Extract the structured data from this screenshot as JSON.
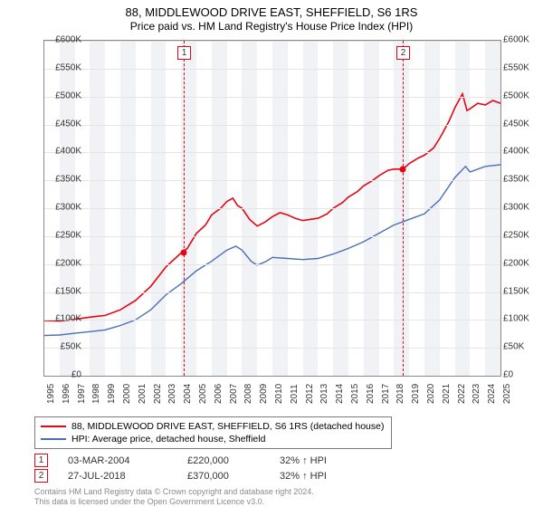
{
  "title": "88, MIDDLEWOOD DRIVE EAST, SHEFFIELD, S6 1RS",
  "subtitle": "Price paid vs. HM Land Registry's House Price Index (HPI)",
  "chart": {
    "type": "line",
    "background_color": "#ffffff",
    "band_color": "#f0f2f6",
    "grid_color": "#e5e5e5",
    "border_color": "#888888",
    "ylim": [
      0,
      600000
    ],
    "ytick_step": 50000,
    "ytick_prefix": "£",
    "y_ticks": [
      "£0",
      "£50K",
      "£100K",
      "£150K",
      "£200K",
      "£250K",
      "£300K",
      "£350K",
      "£400K",
      "£450K",
      "£500K",
      "£550K",
      "£600K"
    ],
    "x_years": [
      1995,
      1996,
      1997,
      1998,
      1999,
      2000,
      2001,
      2002,
      2003,
      2004,
      2005,
      2006,
      2007,
      2008,
      2009,
      2010,
      2011,
      2012,
      2013,
      2014,
      2015,
      2016,
      2017,
      2018,
      2019,
      2020,
      2021,
      2022,
      2023,
      2024,
      2025
    ],
    "series": [
      {
        "name": "88, MIDDLEWOOD DRIVE EAST, SHEFFIELD, S6 1RS (detached house)",
        "color": "#e30613",
        "line_width": 1.6,
        "points": [
          [
            1995,
            99000
          ],
          [
            1996,
            98000
          ],
          [
            1997,
            101000
          ],
          [
            1998,
            105000
          ],
          [
            1999,
            108000
          ],
          [
            2000,
            118000
          ],
          [
            2001,
            135000
          ],
          [
            2002,
            160000
          ],
          [
            2003,
            195000
          ],
          [
            2004,
            220000
          ],
          [
            2004.4,
            228000
          ],
          [
            2005,
            255000
          ],
          [
            2005.6,
            270000
          ],
          [
            2006,
            288000
          ],
          [
            2006.6,
            300000
          ],
          [
            2007,
            312000
          ],
          [
            2007.4,
            318000
          ],
          [
            2007.7,
            305000
          ],
          [
            2008,
            300000
          ],
          [
            2008.5,
            280000
          ],
          [
            2009,
            268000
          ],
          [
            2009.5,
            275000
          ],
          [
            2010,
            285000
          ],
          [
            2010.5,
            292000
          ],
          [
            2011,
            288000
          ],
          [
            2011.5,
            282000
          ],
          [
            2012,
            278000
          ],
          [
            2012.5,
            280000
          ],
          [
            2013,
            282000
          ],
          [
            2013.6,
            290000
          ],
          [
            2014,
            300000
          ],
          [
            2014.6,
            310000
          ],
          [
            2015,
            320000
          ],
          [
            2015.6,
            330000
          ],
          [
            2016,
            340000
          ],
          [
            2016.6,
            350000
          ],
          [
            2017,
            358000
          ],
          [
            2017.6,
            368000
          ],
          [
            2018,
            370000
          ],
          [
            2018.57,
            370000
          ],
          [
            2019,
            380000
          ],
          [
            2019.6,
            390000
          ],
          [
            2020,
            395000
          ],
          [
            2020.6,
            408000
          ],
          [
            2021,
            425000
          ],
          [
            2021.6,
            455000
          ],
          [
            2022,
            480000
          ],
          [
            2022.5,
            505000
          ],
          [
            2022.8,
            475000
          ],
          [
            2023,
            478000
          ],
          [
            2023.5,
            488000
          ],
          [
            2024,
            485000
          ],
          [
            2024.5,
            493000
          ],
          [
            2025,
            488000
          ]
        ]
      },
      {
        "name": "HPI: Average price, detached house, Sheffield",
        "color": "#4a6fb3",
        "line_width": 1.4,
        "points": [
          [
            1995,
            72000
          ],
          [
            1996,
            73000
          ],
          [
            1997,
            76000
          ],
          [
            1998,
            79000
          ],
          [
            1999,
            82000
          ],
          [
            2000,
            90000
          ],
          [
            2001,
            100000
          ],
          [
            2002,
            118000
          ],
          [
            2003,
            145000
          ],
          [
            2004,
            165000
          ],
          [
            2005,
            188000
          ],
          [
            2006,
            205000
          ],
          [
            2007,
            225000
          ],
          [
            2007.6,
            232000
          ],
          [
            2008,
            225000
          ],
          [
            2008.6,
            205000
          ],
          [
            2009,
            198000
          ],
          [
            2009.6,
            205000
          ],
          [
            2010,
            212000
          ],
          [
            2011,
            210000
          ],
          [
            2012,
            208000
          ],
          [
            2013,
            210000
          ],
          [
            2014,
            218000
          ],
          [
            2015,
            228000
          ],
          [
            2016,
            240000
          ],
          [
            2017,
            255000
          ],
          [
            2018,
            270000
          ],
          [
            2019,
            280000
          ],
          [
            2020,
            290000
          ],
          [
            2021,
            315000
          ],
          [
            2022,
            355000
          ],
          [
            2022.7,
            375000
          ],
          [
            2023,
            365000
          ],
          [
            2024,
            375000
          ],
          [
            2025,
            378000
          ]
        ]
      }
    ],
    "sale_markers": [
      {
        "n": "1",
        "year": 2004.17,
        "price": 220000,
        "color": "#e30613"
      },
      {
        "n": "2",
        "year": 2018.57,
        "price": 370000,
        "color": "#e30613"
      }
    ]
  },
  "legend": {
    "items": [
      {
        "color": "#e30613",
        "label": "88, MIDDLEWOOD DRIVE EAST, SHEFFIELD, S6 1RS (detached house)"
      },
      {
        "color": "#4a6fb3",
        "label": "HPI: Average price, detached house, Sheffield"
      }
    ]
  },
  "sales": [
    {
      "n": "1",
      "color": "#e30613",
      "date": "03-MAR-2004",
      "price": "£220,000",
      "note": "32% ↑ HPI"
    },
    {
      "n": "2",
      "color": "#e30613",
      "date": "27-JUL-2018",
      "price": "£370,000",
      "note": "32% ↑ HPI"
    }
  ],
  "footnote_l1": "Contains HM Land Registry data © Crown copyright and database right 2024.",
  "footnote_l2": "This data is licensed under the Open Government Licence v3.0."
}
